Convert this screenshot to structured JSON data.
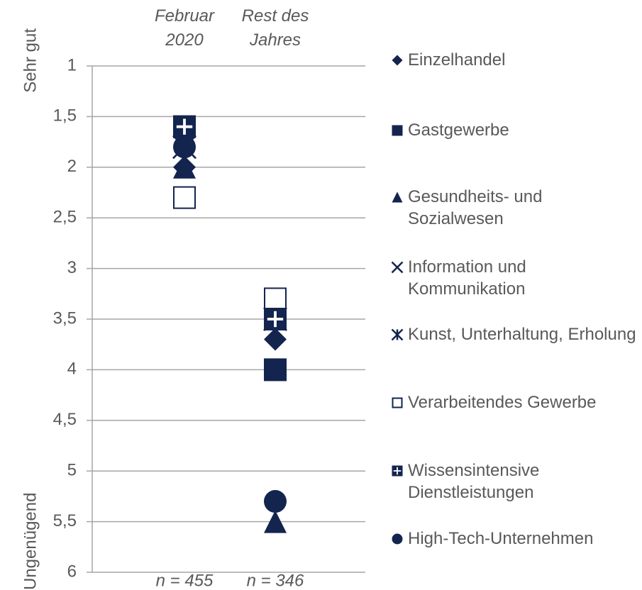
{
  "chart_data": {
    "type": "scatter",
    "categories": [
      "Februar 2020",
      "Rest des Jahres"
    ],
    "annotations": [
      "n = 455",
      "n = 346"
    ],
    "axis_labels": {
      "top": "Sehr gut",
      "bottom": "Ungenügend"
    },
    "ylim": [
      1,
      6
    ],
    "y_inverted": true,
    "yticks": [
      1,
      {
        "value": 1.5,
        "label": "1,5"
      },
      2,
      {
        "value": 2.5,
        "label": "2,5"
      },
      3,
      {
        "value": 3.5,
        "label": "3,5"
      },
      4,
      {
        "value": 4.5,
        "label": "4,5"
      },
      5,
      {
        "value": 5.5,
        "label": "5,5"
      },
      6
    ],
    "grid": true,
    "legend": "right",
    "series": [
      {
        "name": "Einzelhandel",
        "marker": "diamond",
        "color": "#13244f",
        "values": [
          2.0,
          3.7
        ]
      },
      {
        "name": "Gastgewerbe",
        "marker": "square",
        "color": "#13244f",
        "values": [
          1.6,
          4.0
        ]
      },
      {
        "name": "Gesundheits- und Sozialwesen",
        "marker": "triangle",
        "color": "#13244f",
        "values": [
          2.0,
          5.5
        ]
      },
      {
        "name": "Information und Kommunikation",
        "marker": "x",
        "color": "#13244f",
        "values": [
          1.8,
          3.5
        ]
      },
      {
        "name": "Kunst, Unterhaltung, Erholung",
        "marker": "star",
        "color": "#13244f",
        "values": [
          1.8,
          3.5
        ]
      },
      {
        "name": "Verarbeitendes Gewerbe",
        "marker": "open-square",
        "color": "#13244f",
        "values": [
          2.3,
          3.3
        ]
      },
      {
        "name": "Wissensintensive Dienstleistungen",
        "marker": "plus-square",
        "color": "#13244f",
        "values": [
          1.6,
          3.5
        ]
      },
      {
        "name": "High-Tech-Unternehmen",
        "marker": "circle",
        "color": "#13244f",
        "values": [
          1.8,
          5.3
        ]
      }
    ]
  }
}
